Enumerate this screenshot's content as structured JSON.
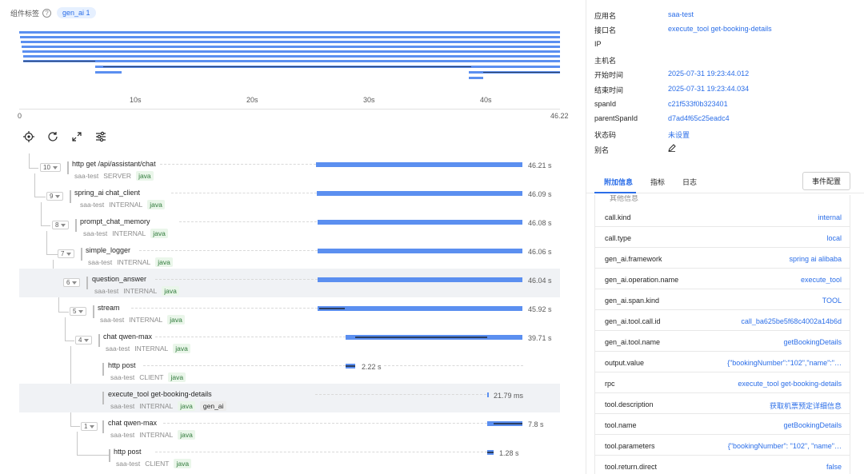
{
  "tagbar": {
    "label": "组件标签",
    "help": "?",
    "chip": "gen_ai 1"
  },
  "axis": {
    "labels": [
      "0",
      "10s",
      "20s",
      "30s",
      "40s",
      "46.22"
    ]
  },
  "toolbar": {
    "icons": [
      "locate-icon",
      "refresh-icon",
      "expand-icon",
      "settings-icon"
    ]
  },
  "spans": [
    {
      "count": "10",
      "name": "http get /api/assistant/chat",
      "service": "saa-test",
      "kind": "SERVER",
      "lang": "java",
      "duration": "46.21 s"
    },
    {
      "count": "9",
      "name": "spring_ai chat_client",
      "service": "saa-test",
      "kind": "INTERNAL",
      "lang": "java",
      "duration": "46.09 s"
    },
    {
      "count": "8",
      "name": "prompt_chat_memory",
      "service": "saa-test",
      "kind": "INTERNAL",
      "lang": "java",
      "duration": "46.08 s"
    },
    {
      "count": "7",
      "name": "simple_logger",
      "service": "saa-test",
      "kind": "INTERNAL",
      "lang": "java",
      "duration": "46.06 s"
    },
    {
      "count": "6",
      "name": "question_answer",
      "service": "saa-test",
      "kind": "INTERNAL",
      "lang": "java",
      "duration": "46.04 s"
    },
    {
      "count": "5",
      "name": "stream",
      "service": "saa-test",
      "kind": "INTERNAL",
      "lang": "java",
      "duration": "45.92 s"
    },
    {
      "count": "4",
      "name": "chat qwen-max",
      "service": "saa-test",
      "kind": "INTERNAL",
      "lang": "java",
      "duration": "39.71 s"
    },
    {
      "count": "",
      "name": "http post",
      "service": "saa-test",
      "kind": "CLIENT",
      "lang": "java",
      "duration": "2.22 s"
    },
    {
      "count": "",
      "name": "execute_tool get-booking-details",
      "service": "saa-test",
      "kind": "INTERNAL",
      "lang": "java",
      "extra": "gen_ai",
      "duration": "21.79 ms"
    },
    {
      "count": "1",
      "name": "chat qwen-max",
      "service": "saa-test",
      "kind": "INTERNAL",
      "lang": "java",
      "duration": "7.8 s"
    },
    {
      "count": "",
      "name": "http post",
      "service": "saa-test",
      "kind": "CLIENT",
      "lang": "java",
      "duration": "1.28 s"
    }
  ],
  "details": [
    {
      "key": "应用名",
      "value": "saa-test"
    },
    {
      "key": "接口名",
      "value": "execute_tool get-booking-details"
    },
    {
      "key": "IP",
      "value": ""
    },
    {
      "key": "主机名",
      "value": ""
    },
    {
      "key": "开始时间",
      "value": "2025-07-31 19:23:44.012"
    },
    {
      "key": "结束时间",
      "value": "2025-07-31 19:23:44.034"
    },
    {
      "key": "spanId",
      "value": "c21f533f0b323401"
    },
    {
      "key": "parentSpanId",
      "value": "d7ad4f65c25eadc4"
    },
    {
      "key": "状态码",
      "value": "未设置"
    },
    {
      "key": "别名",
      "value": ""
    }
  ],
  "tabs": {
    "extra": "附加信息",
    "metrics": "指标",
    "logs": "日志",
    "event_config": "事件配置"
  },
  "attr_hidden_label": "其他信息",
  "attributes": [
    {
      "key": "call.kind",
      "value": "internal"
    },
    {
      "key": "call.type",
      "value": "local"
    },
    {
      "key": "gen_ai.framework",
      "value": "spring ai alibaba"
    },
    {
      "key": "gen_ai.operation.name",
      "value": "execute_tool"
    },
    {
      "key": "gen_ai.span.kind",
      "value": "TOOL"
    },
    {
      "key": "gen_ai.tool.call.id",
      "value": "call_ba625be5f68c4002a14b6d"
    },
    {
      "key": "gen_ai.tool.name",
      "value": "getBookingDetails"
    },
    {
      "key": "output.value",
      "value": "{\"bookingNumber\":\"102\",\"name\":\"…"
    },
    {
      "key": "rpc",
      "value": "execute_tool get-booking-details"
    },
    {
      "key": "tool.description",
      "value": "获取机票预定详细信息"
    },
    {
      "key": "tool.name",
      "value": "getBookingDetails"
    },
    {
      "key": "tool.parameters",
      "value": "{\"bookingNumber\": \"102\", \"name\"…"
    },
    {
      "key": "tool.return.direct",
      "value": "false"
    }
  ],
  "colors": {
    "accent": "#2b6ee8",
    "bar": "#5b8ff0",
    "bar_dark": "#2c3e60",
    "lang_bg": "#eaf6ea"
  }
}
